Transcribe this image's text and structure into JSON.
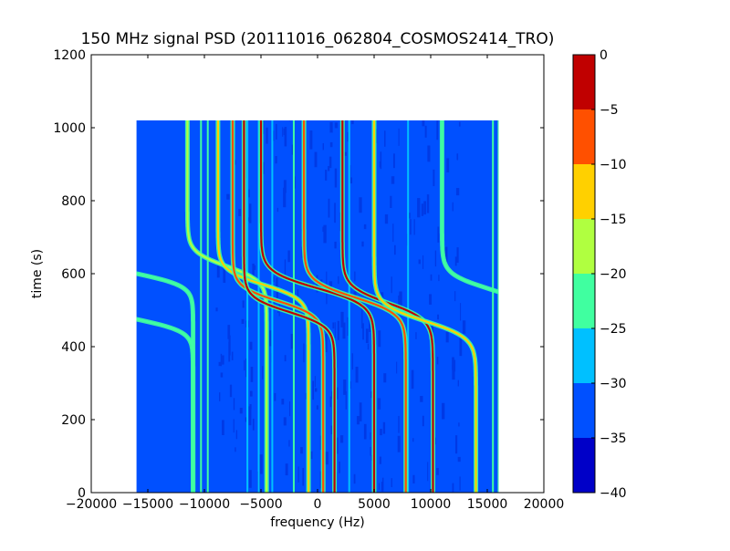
{
  "chart_data": {
    "type": "heatmap",
    "title": "150 MHz signal PSD (20111016_062804_COSMOS2414_TRO)",
    "xlabel": "frequency (Hz)",
    "ylabel": "time (s)",
    "xlim": [
      -20000,
      20000
    ],
    "ylim": [
      0,
      1200
    ],
    "x_ticks": [
      -20000,
      -15000,
      -10000,
      -5000,
      0,
      5000,
      10000,
      15000,
      20000
    ],
    "y_ticks": [
      0,
      200,
      400,
      600,
      800,
      1000,
      1200
    ],
    "x_tick_labels": [
      "−20000",
      "−15000",
      "−10000",
      "−5000",
      "0",
      "5000",
      "10000",
      "15000",
      "20000"
    ],
    "y_tick_labels": [
      "0",
      "200",
      "400",
      "600",
      "800",
      "1000",
      "1200"
    ],
    "data_extent": {
      "x": [
        -16000,
        16000
      ],
      "y": [
        0,
        1020
      ]
    },
    "background_level": -35,
    "colorbar": {
      "min": -40,
      "max": 0,
      "levels": [
        -40,
        -35,
        -30,
        -25,
        -20,
        -15,
        -10,
        -5,
        0
      ],
      "tick_labels": [
        "−40",
        "−35",
        "−30",
        "−25",
        "−20",
        "−15",
        "−10",
        "−5",
        "0"
      ],
      "colors": [
        "#0000c8",
        "#0050ff",
        "#00c0ff",
        "#40ffa0",
        "#b0ff40",
        "#ffd000",
        "#ff5000",
        "#c00000"
      ]
    },
    "vertical_lines": [
      {
        "f": -10300,
        "level": -22
      },
      {
        "f": -9700,
        "level": -25
      },
      {
        "f": -6200,
        "level": -28
      },
      {
        "f": -5200,
        "level": -30
      },
      {
        "f": -4000,
        "level": -30
      },
      {
        "f": -2100,
        "level": -22
      },
      {
        "f": 2800,
        "level": -30
      },
      {
        "f": 8000,
        "level": -28
      },
      {
        "f": 15500,
        "level": -22
      },
      {
        "f": 16000,
        "level": -25
      }
    ],
    "doppler_tracks": [
      {
        "fc": -16000,
        "tc": 600,
        "A": 5000,
        "k": 0.03,
        "level": -22
      },
      {
        "fc": -16000,
        "tc": 475,
        "A": 5000,
        "k": 0.03,
        "level": -25
      },
      {
        "fc": -8000,
        "tc": 620,
        "A": 3500,
        "k": 0.025,
        "level": -20
      },
      {
        "fc": -4800,
        "tc": 570,
        "A": 4000,
        "k": 0.025,
        "level": -15
      },
      {
        "fc": -3500,
        "tc": 525,
        "A": 4000,
        "k": 0.025,
        "level": -10
      },
      {
        "fc": -2500,
        "tc": 495,
        "A": 4000,
        "k": 0.025,
        "level": -5
      },
      {
        "fc": 0,
        "tc": 560,
        "A": 5000,
        "k": 0.022,
        "level": -3
      },
      {
        "fc": 3300,
        "tc": 535,
        "A": 4500,
        "k": 0.022,
        "level": -8
      },
      {
        "fc": 6200,
        "tc": 520,
        "A": 4000,
        "k": 0.022,
        "level": -3
      },
      {
        "fc": 9500,
        "tc": 470,
        "A": 4500,
        "k": 0.022,
        "level": -12
      },
      {
        "fc": 15000,
        "tc": 560,
        "A": 4000,
        "k": 0.025,
        "level": -22
      }
    ]
  }
}
